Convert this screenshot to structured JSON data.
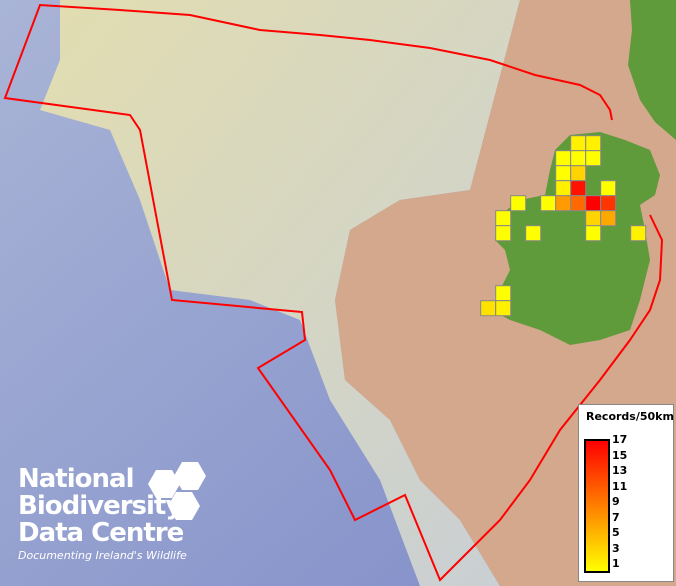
{
  "map": {
    "colors": {
      "deep_sea": "#8f9bcc",
      "shelf": "#d9d4a6",
      "land_shelf": "#d4a88c",
      "land": "#5f9a3b",
      "boundary": "#ff0000",
      "cell_border": "#888888"
    },
    "records_per_cell": [
      2,
      2,
      1,
      1,
      1,
      1,
      4,
      2,
      16,
      1,
      1,
      1,
      8,
      11,
      17,
      14,
      1,
      4,
      7,
      1,
      1,
      1,
      2,
      1,
      3,
      2
    ]
  },
  "legend": {
    "title": "Records/50km",
    "ticks": [
      "17",
      "15",
      "13",
      "11",
      "9",
      "7",
      "5",
      "3",
      "1"
    ],
    "min": 1,
    "max": 17,
    "colors": {
      "low": "#ffff00",
      "mid": "#ff8c00",
      "high": "#ff0000"
    }
  },
  "logo": {
    "line1": "National",
    "line2": "Biodiversity",
    "line3": "Data Centre",
    "tagline": "Documenting Ireland's Wildlife"
  }
}
